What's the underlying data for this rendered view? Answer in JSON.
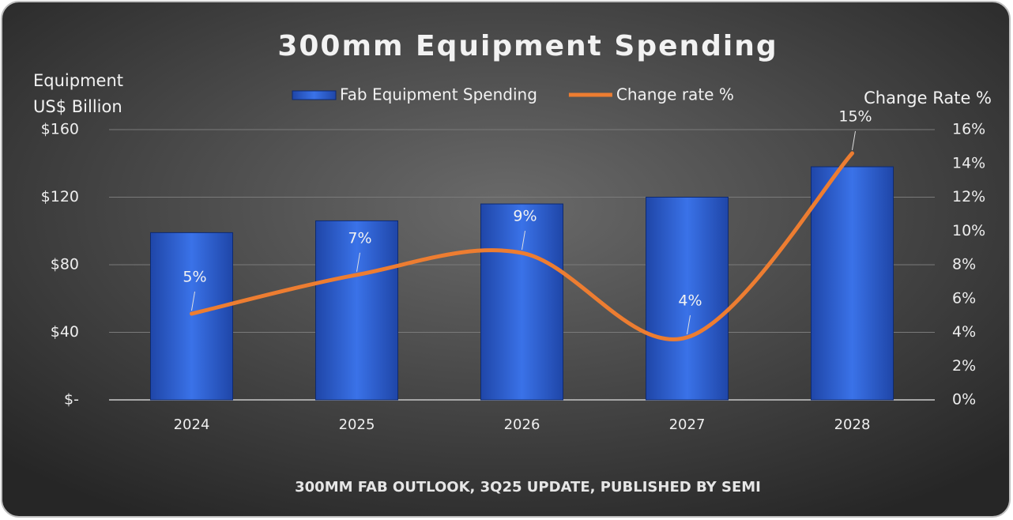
{
  "chart_data": {
    "type": "bar",
    "title": "300mm Equipment Spending",
    "ylabel": [
      "Equipment",
      "US$ Billion"
    ],
    "y2label": "Change Rate %",
    "footnote": "300MM FAB OUTLOOK, 3Q25 UPDATE, PUBLISHED BY SEMI",
    "categories": [
      "2024",
      "2025",
      "2026",
      "2027",
      "2028"
    ],
    "series": [
      {
        "name": "Fab Equipment Spending",
        "type": "bar",
        "color": "#2f63d6",
        "values": [
          99,
          106,
          116,
          120,
          138
        ]
      },
      {
        "name": "Change rate %",
        "type": "line",
        "axis": "y2",
        "color": "#ed7d31",
        "values": [
          5.1,
          7.4,
          8.7,
          3.7,
          14.6
        ],
        "value_labels": [
          "5%",
          "7%",
          "9%",
          "4%",
          "15%"
        ]
      }
    ],
    "ylim": [
      0,
      160
    ],
    "yticks": [
      {
        "value": 0,
        "label": "$-"
      },
      {
        "value": 40,
        "label": "$40"
      },
      {
        "value": 80,
        "label": "$80"
      },
      {
        "value": 120,
        "label": "$120"
      },
      {
        "value": 160,
        "label": "$160"
      }
    ],
    "y2lim": [
      0,
      16
    ],
    "y2ticks": [
      {
        "value": 0,
        "label": "0%"
      },
      {
        "value": 2,
        "label": "2%"
      },
      {
        "value": 4,
        "label": "4%"
      },
      {
        "value": 6,
        "label": "6%"
      },
      {
        "value": 8,
        "label": "8%"
      },
      {
        "value": 10,
        "label": "10%"
      },
      {
        "value": 12,
        "label": "12%"
      },
      {
        "value": 14,
        "label": "14%"
      },
      {
        "value": 16,
        "label": "16%"
      }
    ],
    "grid": true
  }
}
